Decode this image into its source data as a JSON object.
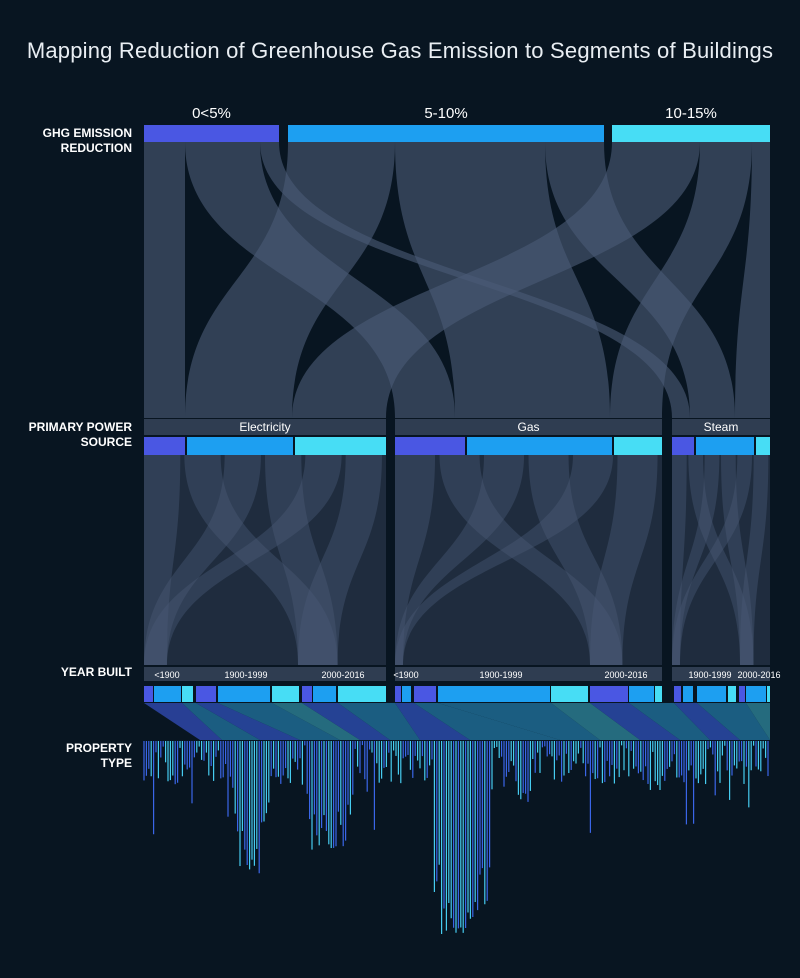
{
  "title": "Mapping Reduction of Greenhouse Gas Emission to Segments of Buildings",
  "row_labels": {
    "ghg_line1": "GHG EMISSION",
    "ghg_line2": "REDUCTION",
    "power_line1": "PRIMARY POWER",
    "power_line2": "SOURCE",
    "year": "YEAR BUILT",
    "property_line1": "PROPERTY",
    "property_line2": "TYPE"
  },
  "ghg_reduction": [
    "0<5%",
    "5-10%",
    "10-15%"
  ],
  "power_sources": [
    "Electricity",
    "Gas",
    "Steam"
  ],
  "year_built_labels": {
    "Electricity": [
      "<1900",
      "1900-1999",
      "2000-2016"
    ],
    "Gas": [
      "<1900",
      "1900-1999",
      "2000-2016"
    ],
    "Steam": [
      "",
      "1900-1999",
      "2000-2016"
    ]
  },
  "colors": {
    "background": "#081521",
    "ribbon": "#4a5a76",
    "band": "#2f3d51",
    "reduction_low": "#4a57e3",
    "reduction_mid": "#1d9ff1",
    "reduction_high": "#47ddf5",
    "property_bar_a": "#3a66e8",
    "property_bar_b": "#46ccf0"
  }
}
